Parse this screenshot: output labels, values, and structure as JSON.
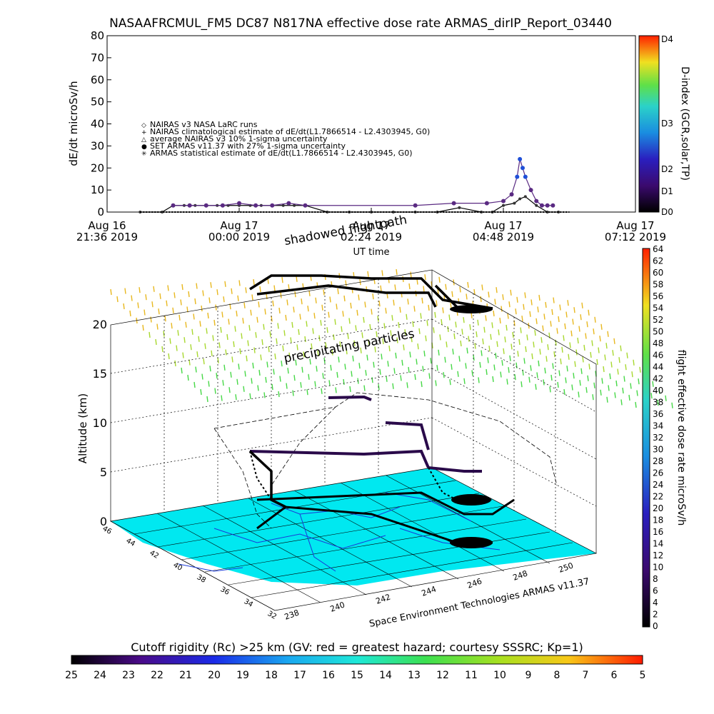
{
  "figure": {
    "title": "NASAAFRCMUL_FM5 DC87 N817NA effective dose rate ARMAS_dirIP_Report_03440",
    "credit": "Space Environment Technologies ARMAS v11.37"
  },
  "chart_data": [
    {
      "type": "line",
      "name": "time series",
      "ylabel": "dE/dt microSv/h",
      "xlabel": "UT time",
      "ylim": [
        0,
        80
      ],
      "yticks": [
        "0",
        "10",
        "20",
        "30",
        "40",
        "50",
        "60",
        "70",
        "80"
      ],
      "xticks": [
        {
          "day": "Aug 16",
          "time": "21:36 2019"
        },
        {
          "day": "Aug 17",
          "time": "00:00 2019"
        },
        {
          "day": "Aug 17",
          "time": "02:24 2019"
        },
        {
          "day": "Aug 17",
          "time": "04:48 2019"
        },
        {
          "day": "Aug 17",
          "time": "07:12 2019"
        }
      ],
      "xlim_hours": [
        0,
        9.6
      ],
      "legend": [
        {
          "symbol": "◇",
          "label": "NAIRAS v3 NASA LaRC runs"
        },
        {
          "symbol": "+",
          "label": "NAIRAS climatological estimate of dE/dt(L1.7866514 - L2.4303945, G0)"
        },
        {
          "symbol": "△",
          "label": "average NAIRAS v3 10% 1-sigma uncertainty"
        },
        {
          "symbol": "●",
          "label": "SET ARMAS v11.37 with 27% 1-sigma uncertainty"
        },
        {
          "symbol": "✳",
          "label": "ARMAS statistical estimate of dE/dt(L1.7866514 - L2.4303945, G0)"
        }
      ],
      "right_axis": {
        "label": "D-index (GCR,solar,TP)",
        "ticks": [
          "D0",
          "D1",
          "D2",
          "D3",
          "D4"
        ]
      },
      "series": [
        {
          "name": "NAIRAS v3 NASA LaRC runs",
          "x_hours": [
            0.6,
            1.0,
            1.2,
            1.4,
            1.6,
            1.8,
            2.0,
            2.2,
            2.4,
            2.6,
            2.8,
            3.0,
            3.2,
            3.4,
            3.6,
            4.0,
            4.4,
            4.8,
            5.2,
            5.6,
            6.0,
            6.4,
            6.8,
            7.0,
            7.2,
            7.4,
            7.5,
            7.6,
            7.8,
            8.0,
            8.2
          ],
          "values": [
            0,
            0,
            3,
            3,
            3,
            3,
            3,
            3,
            3,
            3,
            3,
            3,
            3,
            3,
            3,
            0,
            0,
            0,
            0,
            0,
            0,
            2,
            0,
            0,
            3,
            4,
            6,
            7,
            3,
            0,
            0
          ]
        },
        {
          "name": "SET ARMAS v11.37 with 27% 1-sigma uncertainty",
          "x_hours": [
            1.2,
            1.5,
            1.8,
            2.1,
            2.4,
            2.7,
            3.0,
            3.3,
            3.6,
            5.6,
            6.3,
            6.9,
            7.2,
            7.35,
            7.45,
            7.5,
            7.55,
            7.6,
            7.7,
            7.8,
            7.9,
            8.0,
            8.1
          ],
          "values": [
            3,
            3,
            3,
            3,
            4,
            3,
            3,
            4,
            3,
            3,
            4,
            4,
            5,
            8,
            16,
            24,
            20,
            16,
            10,
            5,
            3,
            3,
            3
          ]
        }
      ]
    },
    {
      "type": "scatter",
      "name": "3D flight path",
      "title_annotation": "shadowed flightpath",
      "zlabel": "Altitude (km)",
      "zticks": [
        "0",
        "5",
        "10",
        "15",
        "20"
      ],
      "xticks": [
        "238",
        "240",
        "242",
        "244",
        "246",
        "248",
        "250"
      ],
      "yticks": [
        "32",
        "34",
        "36",
        "38",
        "40",
        "42",
        "44",
        "46"
      ],
      "annotation": "precipitating particles",
      "colorbar": {
        "label": "flight effective dose rate microSv/h",
        "ticks": [
          "0",
          "2",
          "4",
          "6",
          "8",
          "10",
          "12",
          "14",
          "16",
          "18",
          "20",
          "22",
          "24",
          "26",
          "28",
          "30",
          "32",
          "34",
          "36",
          "38",
          "40",
          "42",
          "44",
          "46",
          "48",
          "50",
          "52",
          "54",
          "56",
          "58",
          "60",
          "62",
          "64"
        ]
      }
    },
    {
      "type": "heatmap",
      "name": "cutoff rigidity colorbar",
      "label": "Cutoff rigidity (Rc) >25 km (GV: red = greatest hazard; courtesy SSSRC; Kp=1)",
      "ticks": [
        "25",
        "24",
        "23",
        "22",
        "21",
        "20",
        "19",
        "18",
        "17",
        "16",
        "15",
        "14",
        "13",
        "12",
        "11",
        "10",
        "9",
        "8",
        "7",
        "6",
        "5"
      ]
    }
  ],
  "colors": {
    "map_fill": "#00e8f0",
    "armas_dots": "#1f4fd8",
    "nairas_dots": "#5a2a82",
    "grid": "#000000"
  }
}
